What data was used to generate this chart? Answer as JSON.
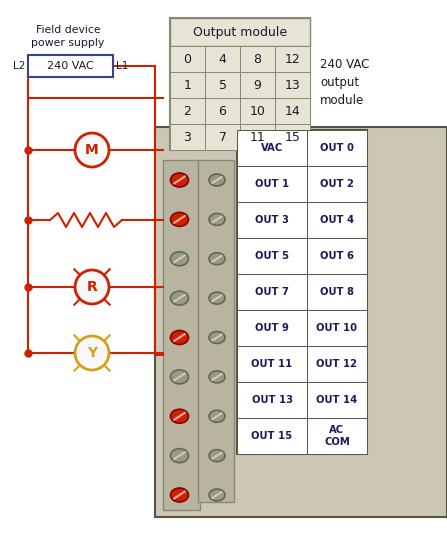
{
  "fig_w": 4.47,
  "fig_h": 5.35,
  "dpi": 100,
  "module_bg": "#cbc7b4",
  "white": "#ffffff",
  "fig_bg": "#ffffff",
  "dark_text": "#1a1a2e",
  "navy_text": "#1a1a5a",
  "box_border": "#555544",
  "wire_color": "#cc2200",
  "table_bg": "#e8e4d5",
  "table_border": "#888877",
  "screw_active_face": "#cc2200",
  "screw_active_ec": "#880000",
  "screw_inactive_face": "#999988",
  "screw_inactive_ec": "#666655",
  "screw_strip_bg": "#b8b4a0",
  "screw_strip_ec": "#888877",
  "device_M_ec": "#cc2200",
  "device_R_ec": "#cc2200",
  "device_Y_ec": "#d4a017",
  "device_face": "#f8f8f8",
  "title_table": "Output module",
  "table_data": [
    [
      "0",
      "4",
      "8",
      "12"
    ],
    [
      "1",
      "5",
      "9",
      "13"
    ],
    [
      "2",
      "6",
      "10",
      "14"
    ],
    [
      "3",
      "7",
      "11",
      "15"
    ]
  ],
  "right_note": "240 VAC\noutput\nmodule",
  "field_label": "Field device\npower supply",
  "vac_label": "240 VAC",
  "left_labels": [
    "VAC",
    "OUT 1",
    "OUT 3",
    "OUT 5",
    "OUT 7",
    "OUT 9",
    "OUT 11",
    "OUT 13",
    "OUT 15"
  ],
  "right_labels": [
    "OUT 0",
    "OUT 2",
    "OUT 4",
    "OUT 6",
    "OUT 8",
    "OUT 10",
    "OUT 12",
    "OUT 14",
    "AC\nCOM"
  ],
  "active_screws": [
    0,
    1,
    4,
    6,
    8
  ]
}
